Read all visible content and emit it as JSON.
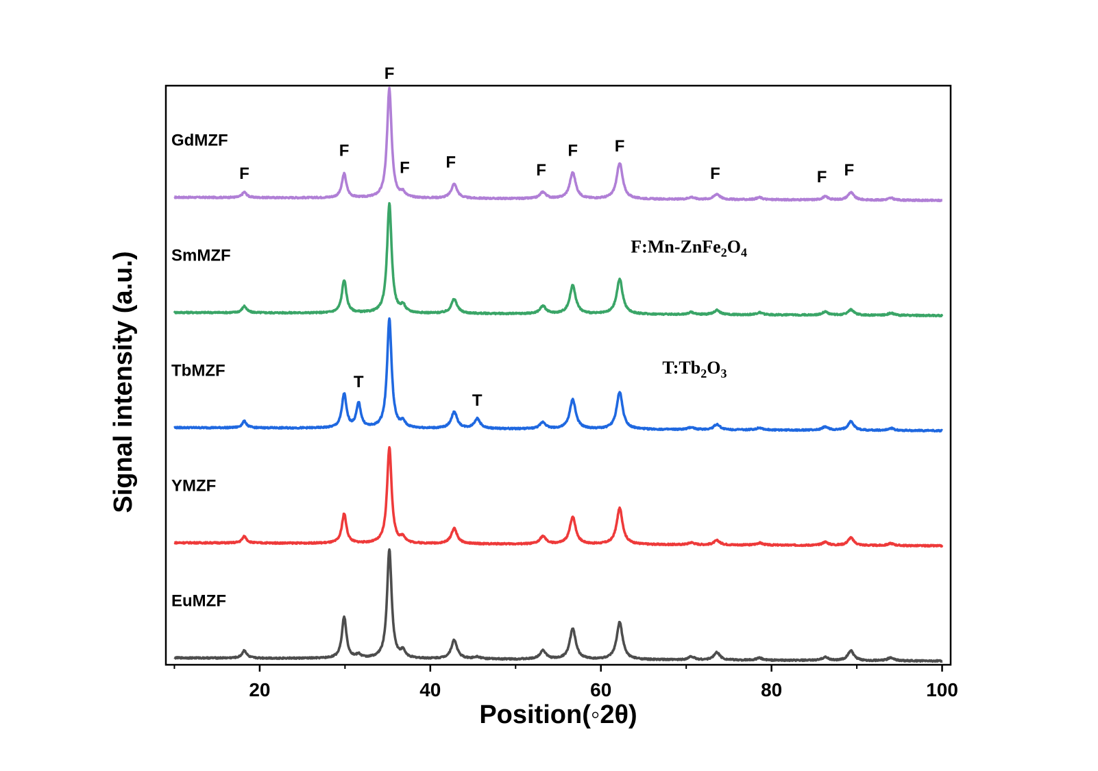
{
  "chart_data": {
    "type": "line",
    "title": "",
    "xlabel": "Position(◦2θ)",
    "ylabel": "Signal intensity (a.u.)",
    "xlim": [
      9,
      101
    ],
    "xticks": [
      20,
      40,
      60,
      80,
      100
    ],
    "yticks_shown": false,
    "grid": false,
    "legend": "direct labels left of each trace",
    "series": [
      {
        "name": "GdMZF",
        "color": "#b07fd6",
        "baseline": 4.0,
        "scale": 0.95,
        "peaks": [
          [
            18.2,
            0.05
          ],
          [
            29.9,
            0.22
          ],
          [
            35.2,
            1.0
          ],
          [
            36.8,
            0.04
          ],
          [
            42.8,
            0.13
          ],
          [
            53.2,
            0.06
          ],
          [
            56.7,
            0.24
          ],
          [
            62.2,
            0.33
          ],
          [
            70.6,
            0.02
          ],
          [
            73.6,
            0.05
          ],
          [
            78.6,
            0.02
          ],
          [
            86.3,
            0.03
          ],
          [
            89.3,
            0.07
          ],
          [
            94.0,
            0.02
          ]
        ]
      },
      {
        "name": "SmMZF",
        "color": "#3aa567",
        "baseline": 3.0,
        "scale": 0.95,
        "peaks": [
          [
            18.2,
            0.06
          ],
          [
            29.9,
            0.3
          ],
          [
            35.2,
            1.0
          ],
          [
            36.8,
            0.06
          ],
          [
            42.8,
            0.13
          ],
          [
            53.2,
            0.07
          ],
          [
            56.7,
            0.26
          ],
          [
            62.2,
            0.32
          ],
          [
            70.6,
            0.02
          ],
          [
            73.6,
            0.04
          ],
          [
            78.6,
            0.02
          ],
          [
            86.3,
            0.03
          ],
          [
            89.3,
            0.05
          ],
          [
            94.0,
            0.02
          ]
        ]
      },
      {
        "name": "TbMZF",
        "color": "#1f68e0",
        "baseline": 2.0,
        "scale": 0.95,
        "peaks": [
          [
            18.2,
            0.06
          ],
          [
            29.9,
            0.31
          ],
          [
            31.6,
            0.22
          ],
          [
            35.2,
            1.0
          ],
          [
            36.8,
            0.05
          ],
          [
            42.8,
            0.15
          ],
          [
            45.5,
            0.09
          ],
          [
            53.2,
            0.06
          ],
          [
            56.7,
            0.27
          ],
          [
            62.2,
            0.34
          ],
          [
            70.6,
            0.02
          ],
          [
            73.6,
            0.05
          ],
          [
            78.6,
            0.02
          ],
          [
            86.3,
            0.03
          ],
          [
            89.3,
            0.08
          ],
          [
            94.0,
            0.02
          ]
        ]
      },
      {
        "name": "YMZF",
        "color": "#ee3a3a",
        "baseline": 1.0,
        "scale": 0.95,
        "peaks": [
          [
            18.2,
            0.06
          ],
          [
            29.9,
            0.27
          ],
          [
            35.2,
            0.88
          ],
          [
            36.8,
            0.05
          ],
          [
            42.8,
            0.14
          ],
          [
            53.2,
            0.07
          ],
          [
            56.7,
            0.25
          ],
          [
            62.2,
            0.33
          ],
          [
            70.6,
            0.02
          ],
          [
            73.6,
            0.04
          ],
          [
            78.6,
            0.02
          ],
          [
            86.3,
            0.03
          ],
          [
            89.3,
            0.07
          ],
          [
            94.0,
            0.02
          ]
        ]
      },
      {
        "name": "EuMZF",
        "color": "#4d4d4d",
        "baseline": 0.0,
        "scale": 0.95,
        "peaks": [
          [
            18.2,
            0.07
          ],
          [
            29.9,
            0.38
          ],
          [
            31.6,
            0.03
          ],
          [
            35.2,
            1.0
          ],
          [
            36.8,
            0.06
          ],
          [
            42.8,
            0.17
          ],
          [
            45.5,
            0.02
          ],
          [
            53.2,
            0.08
          ],
          [
            56.7,
            0.28
          ],
          [
            62.2,
            0.34
          ],
          [
            70.6,
            0.03
          ],
          [
            73.6,
            0.07
          ],
          [
            78.6,
            0.02
          ],
          [
            86.3,
            0.03
          ],
          [
            89.3,
            0.09
          ],
          [
            94.0,
            0.03
          ]
        ]
      }
    ],
    "annotations": [
      {
        "text": "F",
        "x": 18.2,
        "series": "GdMZF",
        "dy": 0.19
      },
      {
        "text": "F",
        "x": 29.9,
        "series": "GdMZF",
        "dy": 0.39
      },
      {
        "text": "F",
        "x": 35.2,
        "series": "GdMZF",
        "dy": 1.06
      },
      {
        "text": "F",
        "x": 37.0,
        "series": "GdMZF",
        "dy": 0.24
      },
      {
        "text": "F",
        "x": 42.4,
        "series": "GdMZF",
        "dy": 0.29
      },
      {
        "text": "F",
        "x": 53.0,
        "series": "GdMZF",
        "dy": 0.22
      },
      {
        "text": "F",
        "x": 56.7,
        "series": "GdMZF",
        "dy": 0.39
      },
      {
        "text": "F",
        "x": 62.2,
        "series": "GdMZF",
        "dy": 0.43
      },
      {
        "text": "F",
        "x": 73.4,
        "series": "GdMZF",
        "dy": 0.19
      },
      {
        "text": "F",
        "x": 85.9,
        "series": "GdMZF",
        "dy": 0.16
      },
      {
        "text": "F",
        "x": 89.1,
        "series": "GdMZF",
        "dy": 0.22
      },
      {
        "text": "T",
        "x": 31.6,
        "series": "TbMZF",
        "dy": 0.38
      },
      {
        "text": "T",
        "x": 45.5,
        "series": "TbMZF",
        "dy": 0.22
      }
    ],
    "phase_notes": {
      "F": {
        "prefix": "F:Mn-ZnFe",
        "sub1": "2",
        "mid": "O",
        "sub2": "4",
        "x": 63.5,
        "y": 3.55
      },
      "T": {
        "prefix": "T:Tb",
        "sub1": "2",
        "mid": "O",
        "sub2": "3",
        "x": 67.2,
        "y": 2.5
      }
    }
  }
}
